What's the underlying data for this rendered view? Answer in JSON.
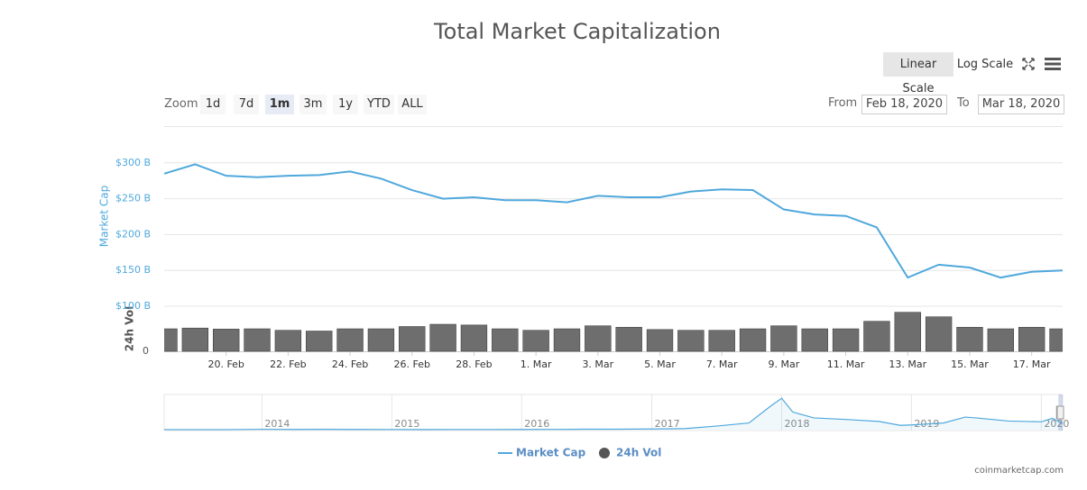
{
  "chart_data": {
    "type": "line",
    "title": "Total Market Capitalization",
    "y_axis_title": "Market Cap",
    "y2_axis_title": "24h Vol",
    "x": [
      "2020-02-18",
      "2020-02-19",
      "2020-02-20",
      "2020-02-21",
      "2020-02-22",
      "2020-02-23",
      "2020-02-24",
      "2020-02-25",
      "2020-02-26",
      "2020-02-27",
      "2020-02-28",
      "2020-02-29",
      "2020-03-01",
      "2020-03-02",
      "2020-03-03",
      "2020-03-04",
      "2020-03-05",
      "2020-03-06",
      "2020-03-07",
      "2020-03-08",
      "2020-03-09",
      "2020-03-10",
      "2020-03-11",
      "2020-03-12",
      "2020-03-13",
      "2020-03-14",
      "2020-03-15",
      "2020-03-16",
      "2020-03-17",
      "2020-03-18"
    ],
    "xlim": [
      "2020-02-18",
      "2020-03-18"
    ],
    "xticks": [
      {
        "value": "2020-02-20",
        "label": "20. Feb"
      },
      {
        "value": "2020-02-22",
        "label": "22. Feb"
      },
      {
        "value": "2020-02-24",
        "label": "24. Feb"
      },
      {
        "value": "2020-02-26",
        "label": "26. Feb"
      },
      {
        "value": "2020-02-28",
        "label": "28. Feb"
      },
      {
        "value": "2020-03-01",
        "label": "1. Mar"
      },
      {
        "value": "2020-03-03",
        "label": "3. Mar"
      },
      {
        "value": "2020-03-05",
        "label": "5. Mar"
      },
      {
        "value": "2020-03-07",
        "label": "7. Mar"
      },
      {
        "value": "2020-03-09",
        "label": "9. Mar"
      },
      {
        "value": "2020-03-11",
        "label": "11. Mar"
      },
      {
        "value": "2020-03-13",
        "label": "13. Mar"
      },
      {
        "value": "2020-03-15",
        "label": "15. Mar"
      },
      {
        "value": "2020-03-17",
        "label": "17. Mar"
      }
    ],
    "ylim": [
      100,
      350
    ],
    "yticks": [
      {
        "value": 100,
        "label": "$100 B"
      },
      {
        "value": 150,
        "label": "$150 B"
      },
      {
        "value": 200,
        "label": "$200 B"
      },
      {
        "value": 250,
        "label": "$250 B"
      },
      {
        "value": 300,
        "label": "$300 B"
      }
    ],
    "y2lim": [
      0,
      300
    ],
    "y2ticks": [
      0
    ],
    "grid": true,
    "legend": "bottom",
    "series": [
      {
        "name": "Market Cap",
        "color": "#4fa8dc",
        "values": [
          285,
          298,
          282,
          280,
          282,
          283,
          288,
          278,
          262,
          250,
          252,
          248,
          248,
          245,
          254,
          252,
          252,
          260,
          263,
          262,
          235,
          228,
          226,
          210,
          140,
          158,
          154,
          140,
          148,
          150
        ]
      },
      {
        "name": "24h Vol",
        "color": "#555555",
        "type": "bar",
        "axis": "y2",
        "values": [
          150,
          155,
          148,
          150,
          140,
          135,
          150,
          150,
          165,
          180,
          175,
          150,
          140,
          150,
          170,
          160,
          145,
          140,
          140,
          150,
          170,
          150,
          150,
          200,
          260,
          230,
          160,
          150,
          160,
          150
        ]
      }
    ],
    "navigator": {
      "x": [
        "2013-04",
        "2013-07",
        "2013-10",
        "2014-01",
        "2014-04",
        "2014-07",
        "2014-10",
        "2015-01",
        "2015-04",
        "2015-07",
        "2015-10",
        "2016-01",
        "2016-04",
        "2016-07",
        "2016-10",
        "2017-01",
        "2017-04",
        "2017-07",
        "2017-10",
        "2017-12",
        "2018-01",
        "2018-02",
        "2018-04",
        "2018-07",
        "2018-10",
        "2018-12",
        "2019-01",
        "2019-04",
        "2019-06",
        "2019-07",
        "2019-10",
        "2020-01",
        "2020-02",
        "2020-03"
      ],
      "values": [
        1.5,
        1,
        2,
        10,
        6,
        8,
        5,
        4,
        3.5,
        4,
        4,
        6,
        7,
        11,
        11,
        17,
        25,
        90,
        170,
        600,
        800,
        450,
        300,
        260,
        210,
        110,
        120,
        170,
        320,
        300,
        220,
        200,
        290,
        150
      ],
      "xlim": [
        "2013-04",
        "2020-03"
      ],
      "ylim": [
        0,
        850
      ],
      "xticks": [
        {
          "value": "2014-01",
          "label": "2014"
        },
        {
          "value": "2015-01",
          "label": "2015"
        },
        {
          "value": "2016-01",
          "label": "2016"
        },
        {
          "value": "2017-01",
          "label": "2017"
        },
        {
          "value": "2018-01",
          "label": "2018"
        },
        {
          "value": "2019-01",
          "label": "2019"
        },
        {
          "value": "2020-01",
          "label": "2020"
        }
      ]
    },
    "controls": {
      "scale_buttons": [
        "Linear Scale",
        "Log Scale"
      ],
      "zoom_label": "Zoom",
      "zoom_buttons": [
        "1d",
        "7d",
        "1m",
        "3m",
        "1y",
        "YTD",
        "ALL"
      ],
      "from_label": "From",
      "from": "Feb 18, 2020",
      "to_label": "To",
      "to": "Mar 18, 2020"
    },
    "credit": "coinmarketcap.com"
  }
}
